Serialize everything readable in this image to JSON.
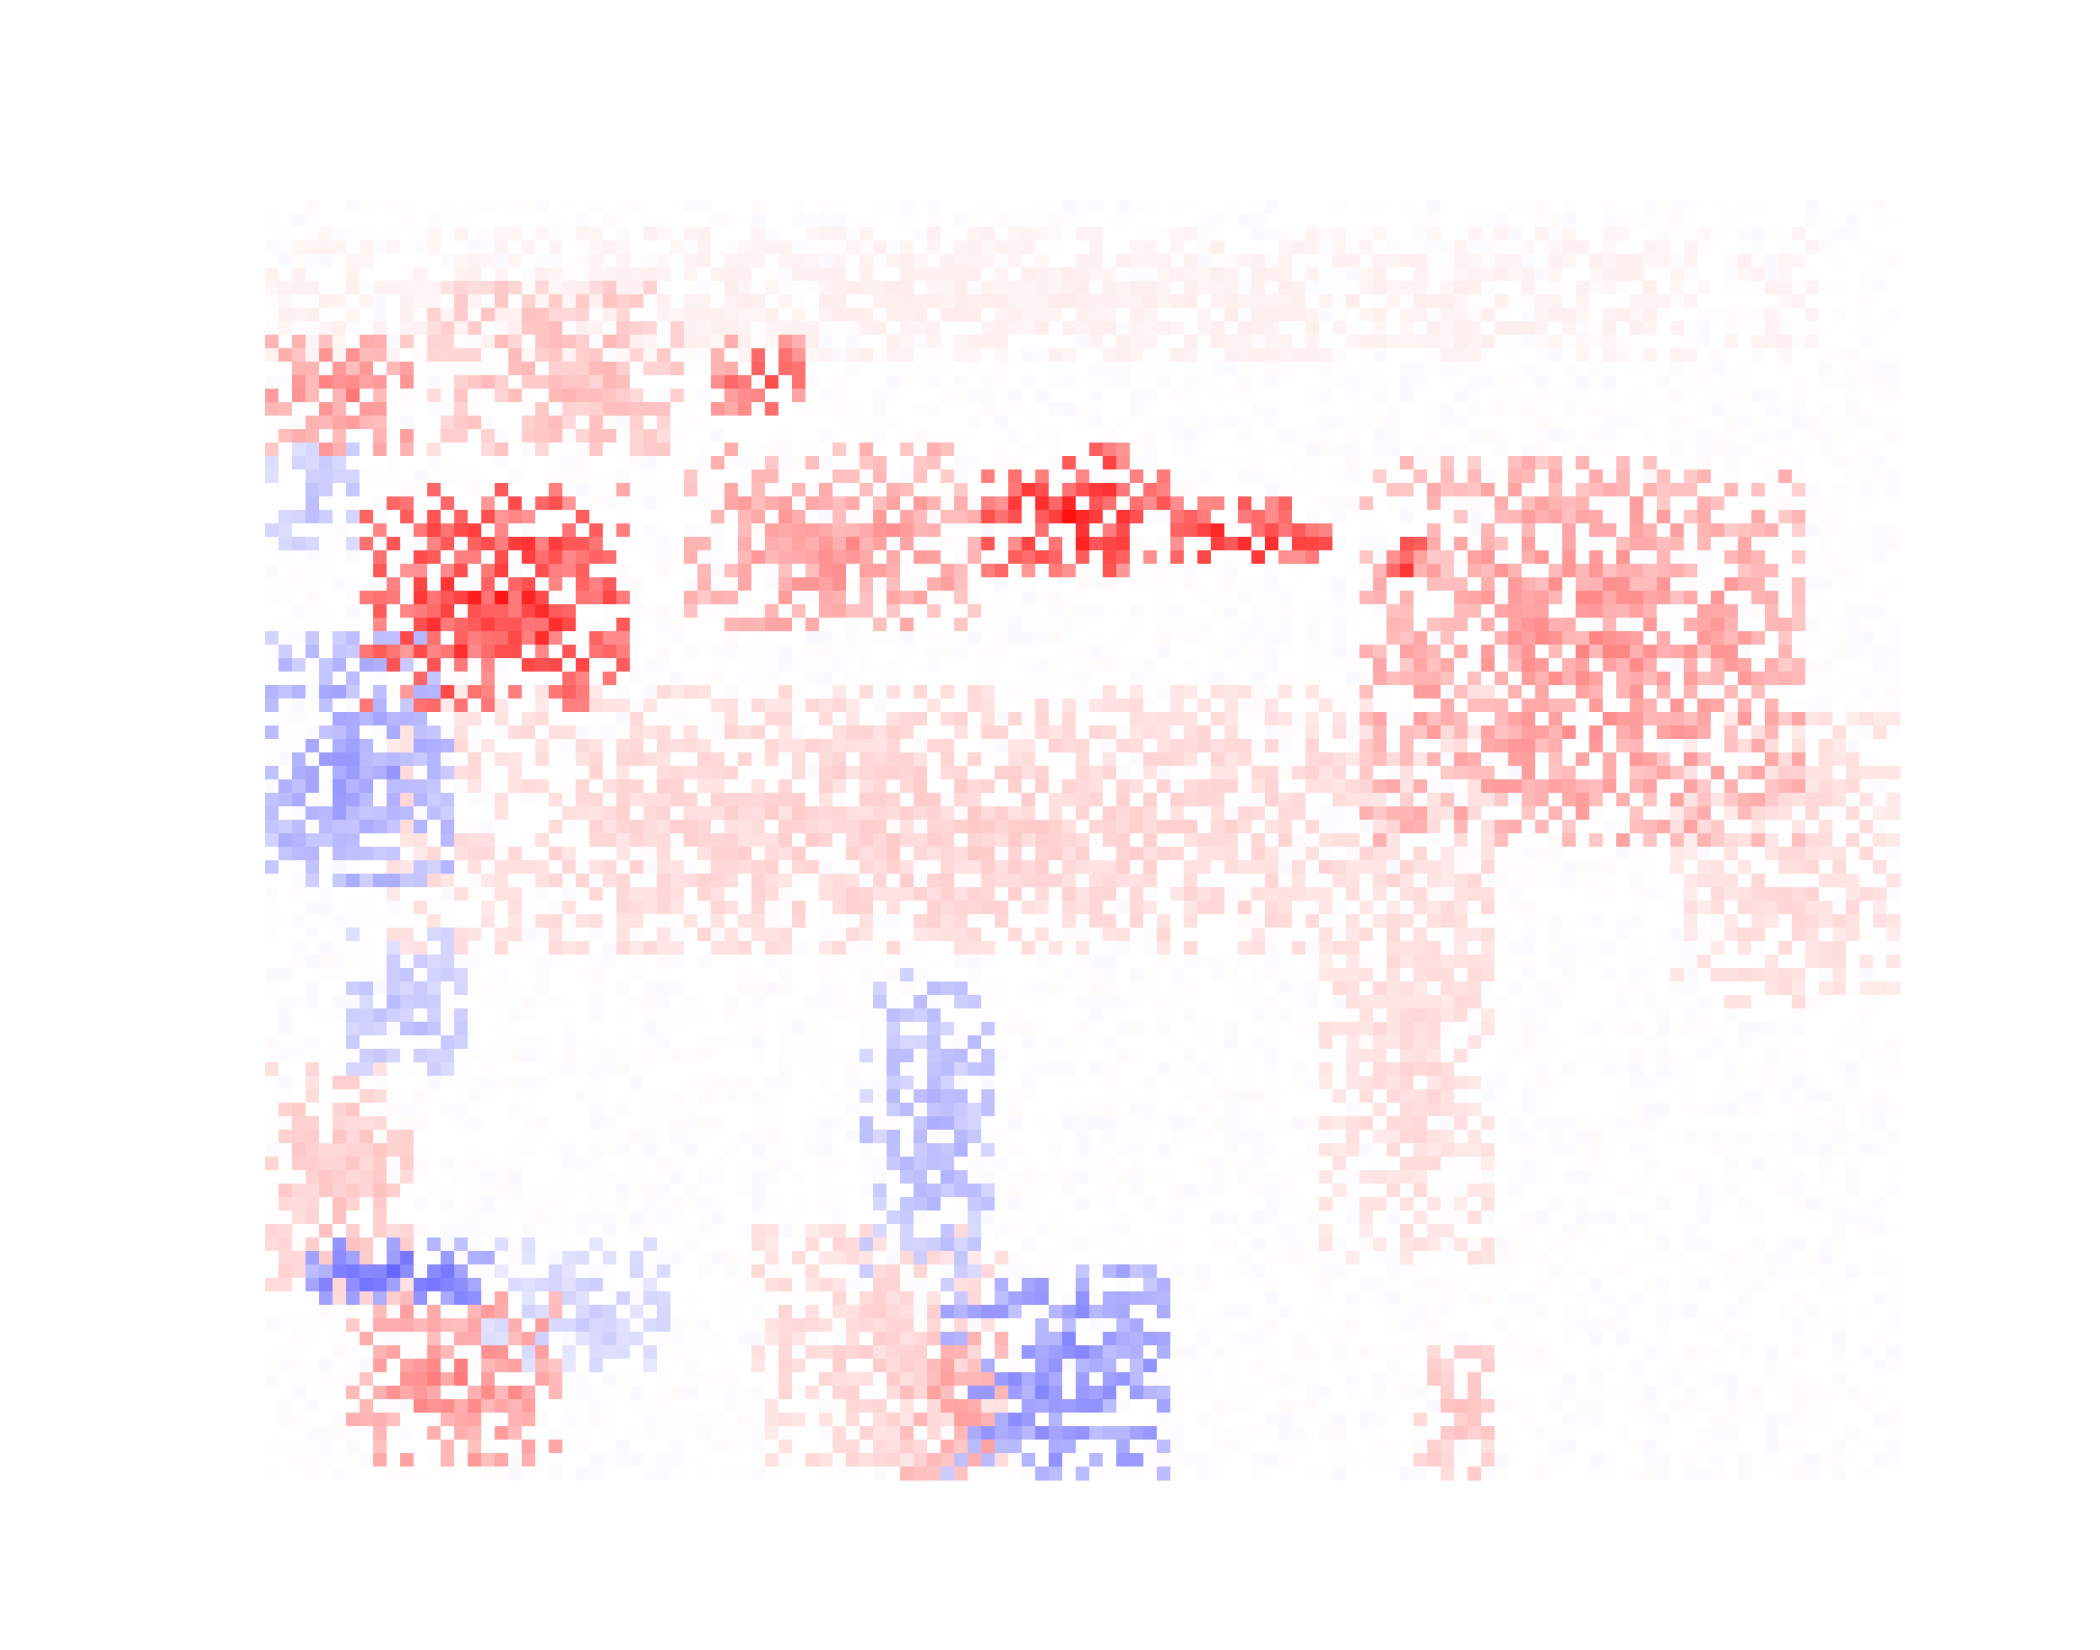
{
  "chart_data": {
    "type": "heatmap",
    "title": "",
    "xlabel": "",
    "ylabel": "",
    "colormap": "bwr",
    "colors": {
      "negative": "#0000ff",
      "neutral": "#ffffff",
      "positive": "#ff0000",
      "background": "#ffffff"
    },
    "value_range": [
      -1,
      1
    ],
    "axes_visible": false,
    "grid": false,
    "legend": "none",
    "grid_cols": 121,
    "grid_rows": 95,
    "regions": [
      {
        "name": "far-north-scatter",
        "x": [
          0.0,
          0.95
        ],
        "y": [
          0.03,
          0.12
        ],
        "value": 0.08
      },
      {
        "name": "north-west-cluster",
        "x": [
          0.1,
          0.25
        ],
        "y": [
          0.07,
          0.19
        ],
        "value": 0.32
      },
      {
        "name": "west-edge-red",
        "x": [
          0.0,
          0.09
        ],
        "y": [
          0.11,
          0.2
        ],
        "value": 0.55
      },
      {
        "name": "west-blue",
        "x": [
          0.0,
          0.05
        ],
        "y": [
          0.19,
          0.27
        ],
        "value": -0.3
      },
      {
        "name": "central-north-red",
        "x": [
          0.28,
          0.33
        ],
        "y": [
          0.11,
          0.16
        ],
        "value": 0.75
      },
      {
        "name": "kazakh-hotspot",
        "x": [
          0.06,
          0.22
        ],
        "y": [
          0.23,
          0.4
        ],
        "value": 0.95
      },
      {
        "name": "ural-scatter",
        "x": [
          0.26,
          0.43
        ],
        "y": [
          0.19,
          0.33
        ],
        "value": 0.5
      },
      {
        "name": "siberia-hot-1",
        "x": [
          0.44,
          0.55
        ],
        "y": [
          0.19,
          0.29
        ],
        "value": 0.98
      },
      {
        "name": "siberia-hot-2",
        "x": [
          0.55,
          0.65
        ],
        "y": [
          0.24,
          0.28
        ],
        "value": 0.98
      },
      {
        "name": "siberia-hot-3",
        "x": [
          0.69,
          0.71
        ],
        "y": [
          0.26,
          0.29
        ],
        "value": 0.98
      },
      {
        "name": "east-red-cluster",
        "x": [
          0.67,
          0.94
        ],
        "y": [
          0.2,
          0.5
        ],
        "value": 0.5
      },
      {
        "name": "west-big-blue",
        "x": [
          0.0,
          0.11
        ],
        "y": [
          0.34,
          0.53
        ],
        "value": -0.45
      },
      {
        "name": "central-pink-belt",
        "x": [
          0.08,
          0.75
        ],
        "y": [
          0.38,
          0.58
        ],
        "value": 0.22
      },
      {
        "name": "east-coast-pink",
        "x": [
          0.86,
          1.0
        ],
        "y": [
          0.4,
          0.63
        ],
        "value": 0.18
      },
      {
        "name": "central-south-pink",
        "x": [
          0.65,
          0.75
        ],
        "y": [
          0.52,
          0.83
        ],
        "value": 0.18
      },
      {
        "name": "west-blue-strip",
        "x": [
          0.05,
          0.12
        ],
        "y": [
          0.57,
          0.68
        ],
        "value": -0.3
      },
      {
        "name": "southwest-pink",
        "x": [
          0.0,
          0.09
        ],
        "y": [
          0.68,
          0.86
        ],
        "value": 0.28
      },
      {
        "name": "south-blue-band",
        "x": [
          0.03,
          0.14
        ],
        "y": [
          0.82,
          0.86
        ],
        "value": -0.65
      },
      {
        "name": "south-light-blue",
        "x": [
          0.14,
          0.24
        ],
        "y": [
          0.82,
          0.91
        ],
        "value": -0.22
      },
      {
        "name": "south-red",
        "x": [
          0.05,
          0.18
        ],
        "y": [
          0.86,
          0.98
        ],
        "value": 0.55
      },
      {
        "name": "india-pink",
        "x": [
          0.3,
          0.45
        ],
        "y": [
          0.8,
          0.98
        ],
        "value": 0.22
      },
      {
        "name": "south-red-2",
        "x": [
          0.39,
          0.45
        ],
        "y": [
          0.89,
          1.0
        ],
        "value": 0.45
      },
      {
        "name": "south-blue-large",
        "x": [
          0.42,
          0.55
        ],
        "y": [
          0.84,
          1.0
        ],
        "value": -0.55
      },
      {
        "name": "south-light-blue-line",
        "x": [
          0.37,
          0.44
        ],
        "y": [
          0.6,
          0.84
        ],
        "value": -0.35
      },
      {
        "name": "southeast-pink",
        "x": [
          0.71,
          0.75
        ],
        "y": [
          0.9,
          1.0
        ],
        "value": 0.28
      }
    ]
  }
}
